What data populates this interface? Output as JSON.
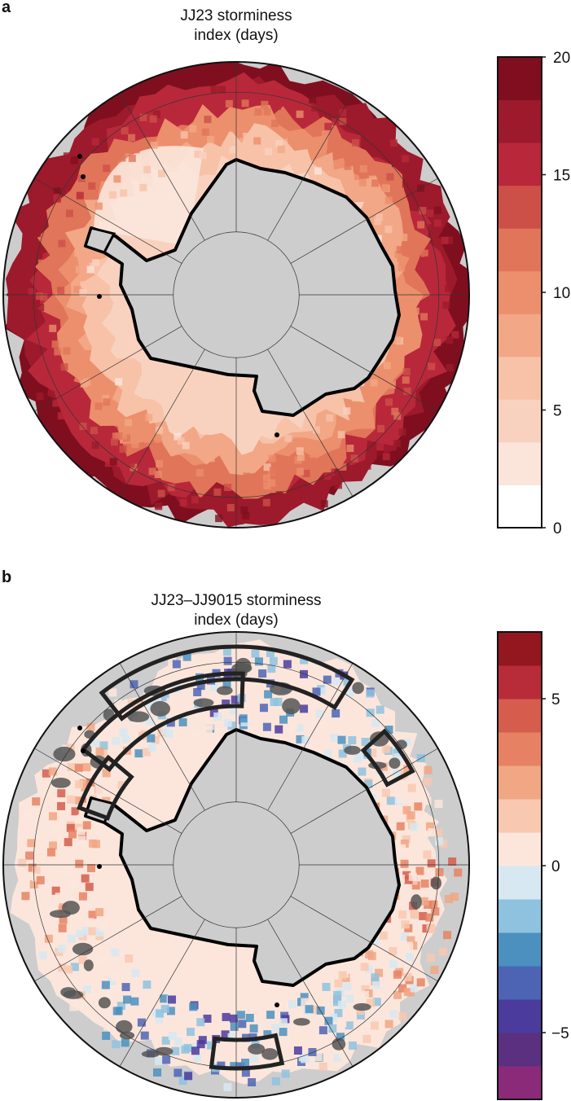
{
  "chart_data": [
    {
      "panel": "a",
      "type": "heatmap",
      "title_line1": "JJ23 storminess",
      "title_line2": "index (days)",
      "colorbar": {
        "ticks": [
          "20",
          "15",
          "10",
          "5",
          "0"
        ],
        "range": [
          0,
          20
        ],
        "levels": [
          "#ffffff",
          "#fbe5db",
          "#f9d2bf",
          "#f7c2a8",
          "#f2a786",
          "#ec8f6c",
          "#e07559",
          "#cd5048",
          "#b8283a",
          "#9c1a2b",
          "#7f0f1f"
        ]
      },
      "map": {
        "projection": "south-polar-stereographic",
        "ocean_color": "#cdcdcd",
        "coast_color": "#000000"
      }
    },
    {
      "panel": "b",
      "type": "heatmap",
      "title_line1": "JJ23–JJ9015 storminess",
      "title_line2": "index (days)",
      "colorbar": {
        "ticks": [
          "5",
          "0",
          "−5"
        ],
        "range": [
          -7,
          7
        ],
        "levels": [
          "#8c2a7a",
          "#5b3080",
          "#4b3b9c",
          "#4d64b5",
          "#4b90bf",
          "#8ec2df",
          "#d7e8f1",
          "#fce6dc",
          "#f8c8b0",
          "#f1a684",
          "#e68263",
          "#d45d4d",
          "#b72c38",
          "#92171f"
        ]
      },
      "map": {
        "projection": "south-polar-stereographic",
        "ocean_color": "#cdcdcd",
        "significance_color": "#555555",
        "box_color": "#222222"
      }
    }
  ]
}
